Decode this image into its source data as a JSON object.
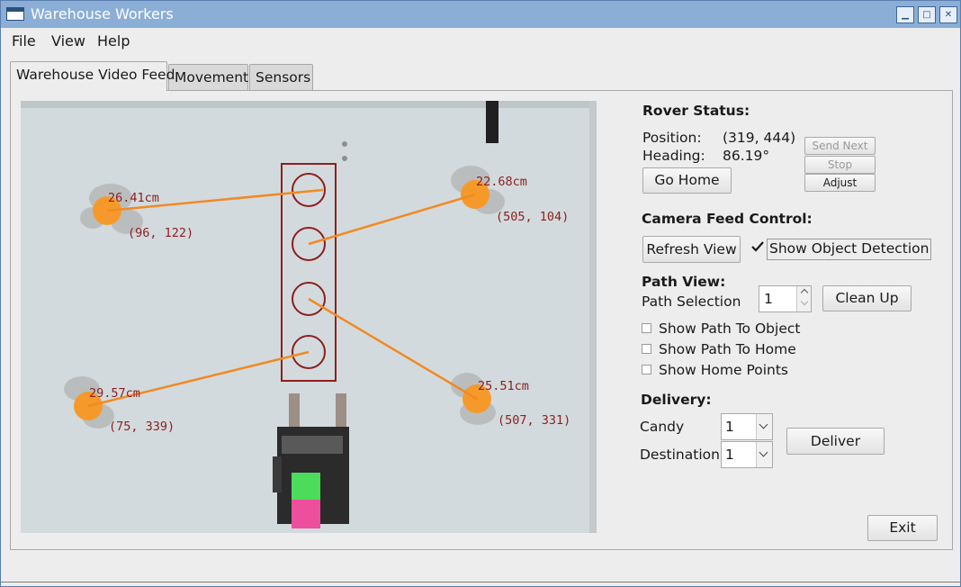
{
  "window": {
    "title": "Warehouse Workers",
    "controls": {
      "minimize": "▁",
      "maximize": "□",
      "close": "✕"
    }
  },
  "menu": [
    "File",
    "View",
    "Help"
  ],
  "tabs": [
    "Warehouse Video Feed",
    "Movement",
    "Sensors"
  ],
  "video": {
    "detections": [
      {
        "distance": "26.41cm",
        "coords": "(96, 122)"
      },
      {
        "distance": "22.68cm",
        "coords": "(505, 104)"
      },
      {
        "distance": "29.57cm",
        "coords": "(75, 339)"
      },
      {
        "distance": "25.51cm",
        "coords": "(507, 331)"
      }
    ]
  },
  "rover": {
    "heading_title": "Rover Status:",
    "position_label": "Position:",
    "position_value": "(319, 444)",
    "heading_label": "Heading:",
    "heading_value": "86.19°",
    "go_home": "Go Home",
    "send_next": "Send Next",
    "stop": "Stop",
    "adjust": "Adjust"
  },
  "camera": {
    "title": "Camera Feed Control:",
    "refresh": "Refresh View",
    "show_detection": "Show Object Detection",
    "show_detection_checked": true
  },
  "path": {
    "title": "Path View:",
    "selection_label": "Path Selection",
    "selection_value": "1",
    "clean_up": "Clean Up",
    "options": [
      {
        "label": "Show Path To Object",
        "checked": false
      },
      {
        "label": "Show Path To Home",
        "checked": false
      },
      {
        "label": "Show Home Points",
        "checked": false
      }
    ]
  },
  "delivery": {
    "title": "Delivery:",
    "candy_label": "Candy",
    "candy_value": "1",
    "destination_label": "Destination",
    "destination_value": "1",
    "deliver": "Deliver"
  },
  "exit": "Exit"
}
